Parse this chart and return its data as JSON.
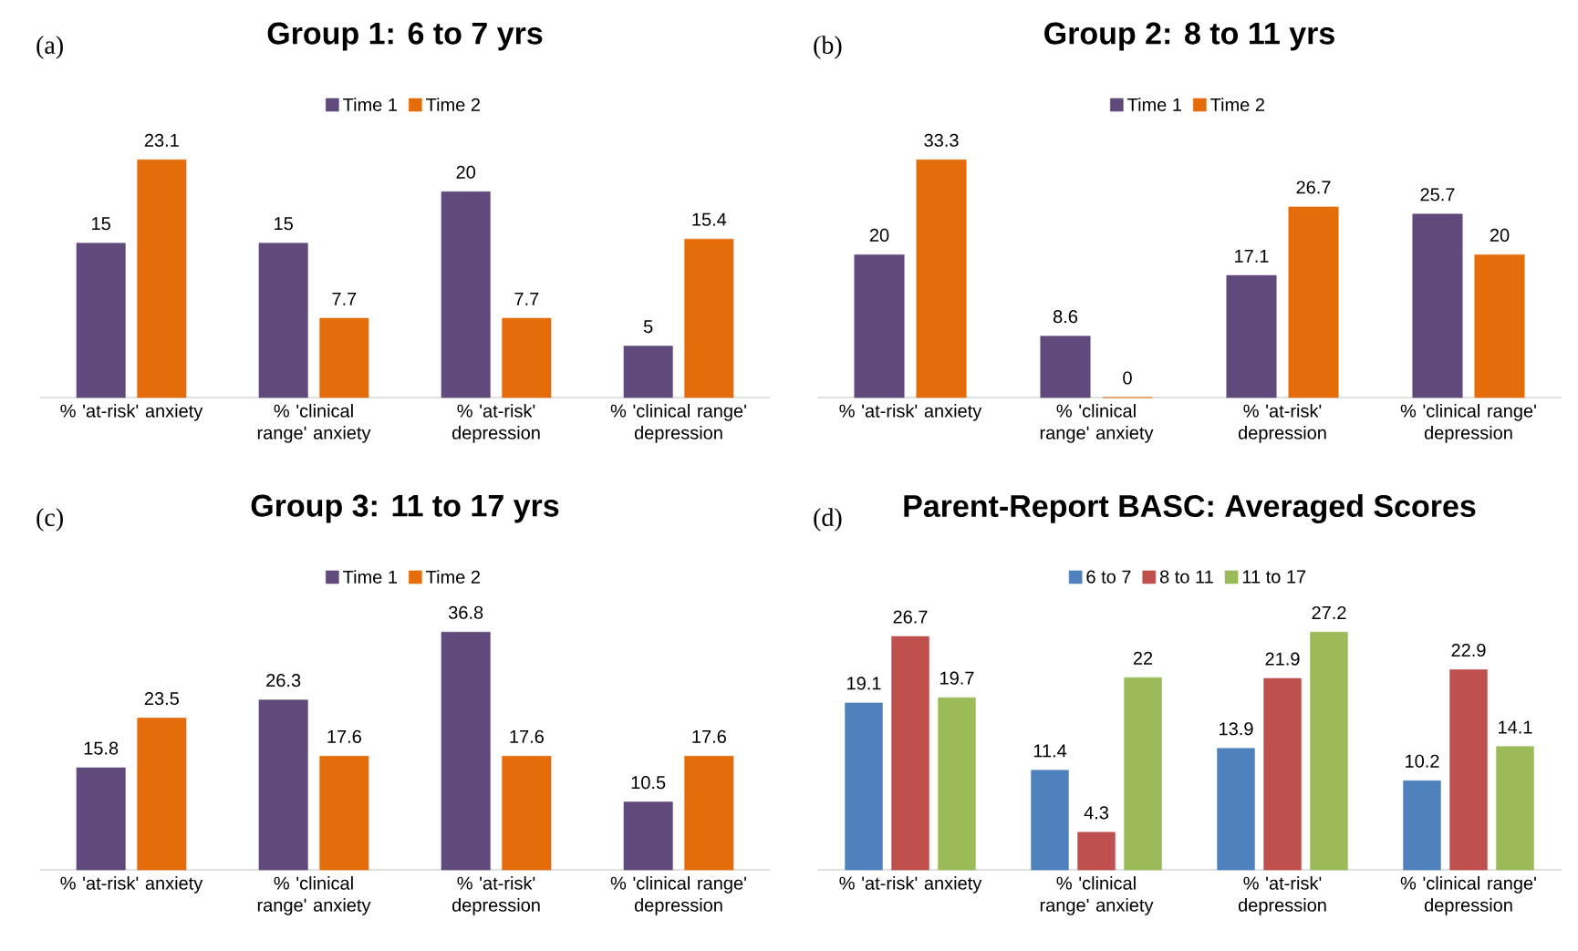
{
  "chart_data": [
    {
      "type": "bar",
      "title": "Group 1: 6 to 7 yrs",
      "annotations": [
        "(a)"
      ],
      "legend": "top",
      "data_labels": true,
      "categories": [
        "% 'at-risk' anxiety",
        "% 'clinical range' anxiety",
        "% 'at-risk' depression",
        "% 'clinical range' depression"
      ],
      "series": [
        {
          "name": "Time 1",
          "color": "#604a7b",
          "values": [
            15,
            15,
            20,
            5
          ]
        },
        {
          "name": "Time 2",
          "color": "#e46c0a",
          "values": [
            23.1,
            7.7,
            7.7,
            15.4
          ]
        }
      ]
    },
    {
      "type": "bar",
      "title": "Group 2: 8 to 11 yrs",
      "annotations": [
        "(b)"
      ],
      "legend": "top",
      "data_labels": true,
      "categories": [
        "% 'at-risk' anxiety",
        "% 'clinical range' anxiety",
        "% 'at-risk' depression",
        "% 'clinical range' depression"
      ],
      "series": [
        {
          "name": "Time 1",
          "color": "#604a7b",
          "values": [
            20,
            8.6,
            17.1,
            25.7
          ]
        },
        {
          "name": "Time 2",
          "color": "#e46c0a",
          "values": [
            33.3,
            0,
            26.7,
            20
          ]
        }
      ]
    },
    {
      "type": "bar",
      "title": "Group 3: 11 to 17 yrs",
      "annotations": [
        "(c)"
      ],
      "legend": "top",
      "data_labels": true,
      "categories": [
        "% 'at-risk' anxiety",
        "% 'clinical range' anxiety",
        "% 'at-risk' depression",
        "% 'clinical range' depression"
      ],
      "series": [
        {
          "name": "Time 1",
          "color": "#604a7b",
          "values": [
            15.8,
            26.3,
            36.8,
            10.5
          ]
        },
        {
          "name": "Time 2",
          "color": "#e46c0a",
          "values": [
            23.5,
            17.6,
            17.6,
            17.6
          ]
        }
      ]
    },
    {
      "type": "bar",
      "title": "Parent-Report BASC: Averaged Scores",
      "annotations": [
        "(d)"
      ],
      "legend": "top",
      "data_labels": true,
      "categories": [
        "% 'at-risk' anxiety",
        "% 'clinical range' anxiety",
        "% 'at-risk' depression",
        "% 'clinical range' depression"
      ],
      "series": [
        {
          "name": "6 to 7",
          "color": "#4f81bd",
          "values": [
            19.1,
            11.4,
            13.9,
            10.2
          ]
        },
        {
          "name": "8 to 11",
          "color": "#c0504d",
          "values": [
            26.7,
            4.3,
            21.9,
            22.9
          ]
        },
        {
          "name": "11 to 17",
          "color": "#9bbb59",
          "values": [
            19.7,
            22,
            27.2,
            14.1
          ]
        }
      ]
    }
  ]
}
